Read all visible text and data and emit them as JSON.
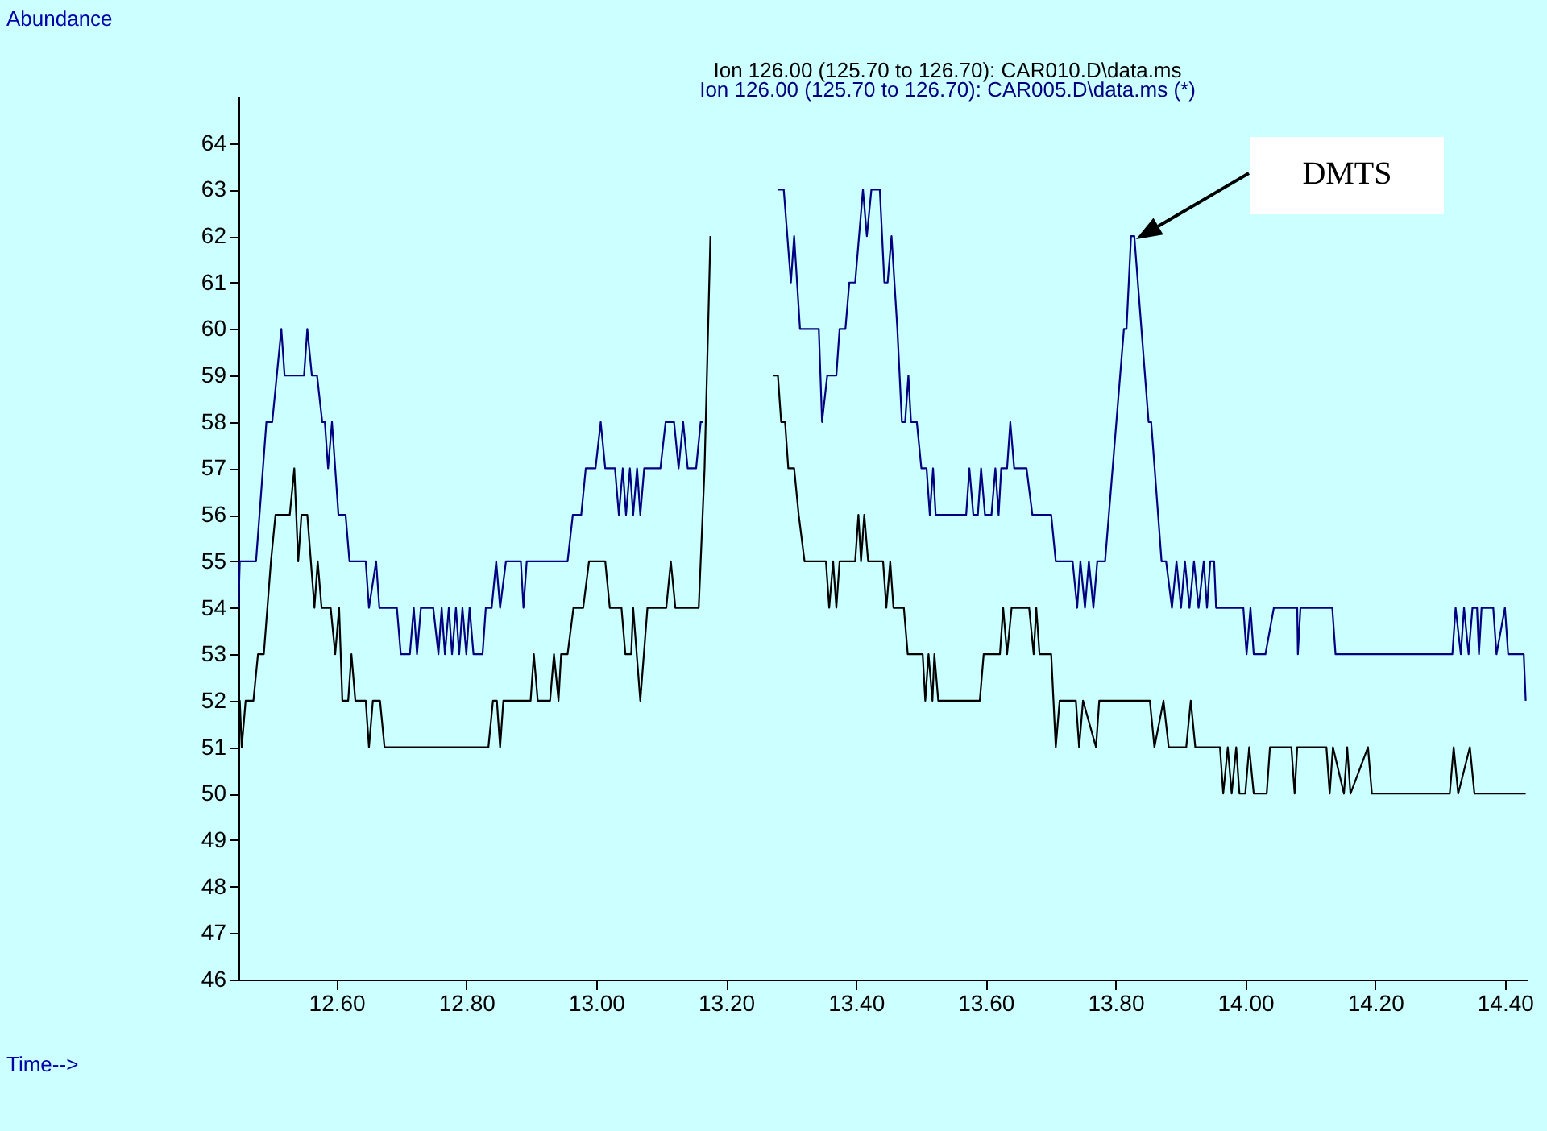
{
  "chart_data": {
    "type": "line",
    "xlim": [
      12.449,
      14.435
    ],
    "ylim": [
      46,
      65
    ],
    "xticks": [
      {
        "value": 12.6,
        "label": "12.60"
      },
      {
        "value": 12.8,
        "label": "12.80"
      },
      {
        "value": 13.0,
        "label": "13.00"
      },
      {
        "value": 13.2,
        "label": "13.20"
      },
      {
        "value": 13.4,
        "label": "13.40"
      },
      {
        "value": 13.6,
        "label": "13.60"
      },
      {
        "value": 13.8,
        "label": "13.80"
      },
      {
        "value": 14.0,
        "label": "14.00"
      },
      {
        "value": 14.2,
        "label": "14.20"
      },
      {
        "value": 14.4,
        "label": "14.40"
      }
    ],
    "yticks": [
      46,
      47,
      48,
      49,
      50,
      51,
      52,
      53,
      54,
      55,
      56,
      57,
      58,
      59,
      60,
      61,
      62,
      63,
      64
    ],
    "grid": false,
    "annotations": [
      "Abundance",
      "DMTS",
      "Time-->"
    ],
    "series": [
      {
        "name": "Ion 126.00 (125.70 to 126.70): CAR010.D\\data.ms",
        "color": "#000000",
        "x": [
          12.449,
          12.451,
          12.454,
          12.46,
          12.472,
          12.479,
          12.488,
          12.499,
          12.506,
          12.528,
          12.535,
          12.541,
          12.546,
          12.555,
          12.566,
          12.571,
          12.577,
          12.591,
          12.598,
          12.604,
          12.609,
          12.618,
          12.623,
          12.629,
          12.645,
          12.65,
          12.656,
          12.667,
          12.674,
          12.834,
          12.841,
          12.847,
          12.852,
          12.857,
          12.899,
          12.904,
          12.91,
          12.929,
          12.935,
          12.942,
          12.946,
          12.956,
          12.965,
          12.98,
          12.989,
          13.014,
          13.021,
          13.039,
          13.045,
          13.054,
          13.057,
          13.068,
          13.079,
          13.108,
          13.115,
          13.122,
          13.158,
          13.167,
          13.176,
          13.19,
          13.258,
          13.273,
          13.28,
          13.285,
          13.291,
          13.296,
          13.305,
          13.312,
          13.321,
          13.354,
          13.359,
          13.365,
          13.37,
          13.375,
          13.399,
          13.404,
          13.408,
          13.413,
          13.419,
          13.442,
          13.447,
          13.453,
          13.458,
          13.474,
          13.48,
          13.503,
          13.507,
          13.512,
          13.518,
          13.521,
          13.527,
          13.591,
          13.597,
          13.622,
          13.627,
          13.633,
          13.64,
          13.667,
          13.674,
          13.678,
          13.683,
          13.701,
          13.708,
          13.714,
          13.739,
          13.744,
          13.75,
          13.77,
          13.775,
          13.853,
          13.86,
          13.874,
          13.882,
          13.909,
          13.916,
          13.923,
          13.961,
          13.966,
          13.973,
          13.979,
          13.986,
          13.991,
          14.0,
          14.006,
          14.013,
          14.033,
          14.038,
          14.071,
          14.076,
          14.08,
          14.125,
          14.13,
          14.135,
          14.152,
          14.157,
          14.162,
          14.189,
          14.195,
          14.315,
          14.321,
          14.328,
          14.346,
          14.353,
          14.432
        ],
        "values": [
          51,
          52,
          51,
          52,
          52,
          53,
          53,
          55,
          56,
          56,
          57,
          55,
          56,
          56,
          54,
          55,
          54,
          54,
          53,
          54,
          52,
          52,
          53,
          52,
          52,
          51,
          52,
          52,
          51,
          51,
          52,
          52,
          51,
          52,
          52,
          53,
          52,
          52,
          53,
          52,
          53,
          53,
          54,
          54,
          55,
          55,
          54,
          54,
          53,
          53,
          54,
          52,
          54,
          54,
          55,
          54,
          54,
          57,
          62,
          null,
          null,
          59,
          59,
          58,
          58,
          57,
          57,
          56,
          55,
          55,
          54,
          55,
          54,
          55,
          55,
          56,
          55,
          56,
          55,
          55,
          54,
          55,
          54,
          54,
          53,
          53,
          52,
          53,
          52,
          53,
          52,
          52,
          53,
          53,
          54,
          53,
          54,
          54,
          53,
          54,
          53,
          53,
          51,
          52,
          52,
          51,
          52,
          51,
          52,
          52,
          51,
          52,
          51,
          51,
          52,
          51,
          51,
          50,
          51,
          50,
          51,
          50,
          50,
          51,
          50,
          50,
          51,
          51,
          50,
          51,
          51,
          50,
          51,
          50,
          51,
          50,
          51,
          50,
          50,
          51,
          50,
          51,
          50,
          50
        ]
      },
      {
        "name": "Ion 126.00 (125.70 to 126.70): CAR005.D\\data.ms (*)",
        "color": "#000080",
        "x": [
          12.449,
          12.451,
          12.476,
          12.492,
          12.501,
          12.515,
          12.52,
          12.55,
          12.555,
          12.562,
          12.57,
          12.578,
          12.582,
          12.587,
          12.593,
          12.603,
          12.614,
          12.62,
          12.645,
          12.65,
          12.661,
          12.666,
          12.693,
          12.699,
          12.713,
          12.719,
          12.724,
          12.73,
          12.749,
          12.757,
          12.762,
          12.767,
          12.773,
          12.778,
          12.784,
          12.789,
          12.794,
          12.8,
          12.805,
          12.811,
          12.825,
          12.83,
          12.839,
          12.846,
          12.852,
          12.861,
          12.884,
          12.888,
          12.893,
          12.956,
          12.964,
          12.977,
          12.984,
          12.999,
          13.007,
          13.014,
          13.029,
          13.035,
          13.041,
          13.046,
          13.052,
          13.057,
          13.063,
          13.068,
          13.074,
          13.099,
          13.107,
          13.12,
          13.127,
          13.134,
          13.141,
          13.154,
          13.161,
          13.165,
          13.177,
          13.273,
          13.28,
          13.289,
          13.3,
          13.305,
          13.314,
          13.343,
          13.348,
          13.356,
          13.37,
          13.375,
          13.384,
          13.39,
          13.399,
          13.411,
          13.417,
          13.424,
          13.437,
          13.444,
          13.449,
          13.455,
          13.464,
          13.471,
          13.476,
          13.481,
          13.485,
          13.494,
          13.501,
          13.509,
          13.514,
          13.519,
          13.523,
          13.57,
          13.575,
          13.581,
          13.588,
          13.593,
          13.599,
          13.609,
          13.615,
          13.62,
          13.624,
          13.633,
          13.638,
          13.644,
          13.663,
          13.672,
          13.701,
          13.708,
          13.734,
          13.741,
          13.746,
          13.753,
          13.759,
          13.766,
          13.772,
          13.784,
          13.813,
          13.817,
          13.824,
          13.829,
          13.851,
          13.855,
          13.871,
          13.878,
          13.887,
          13.894,
          13.901,
          13.907,
          13.914,
          13.921,
          13.928,
          13.936,
          13.941,
          13.946,
          13.952,
          13.955,
          13.997,
          14.002,
          14.008,
          14.013,
          14.031,
          14.044,
          14.08,
          14.081,
          14.085,
          14.134,
          14.139,
          14.319,
          14.324,
          14.332,
          14.337,
          14.344,
          14.35,
          14.357,
          14.36,
          14.364,
          14.382,
          14.387,
          14.4,
          14.405,
          14.429,
          14.432
        ],
        "values": [
          54,
          55,
          55,
          58,
          58,
          60,
          59,
          59,
          60,
          59,
          59,
          58,
          58,
          57,
          58,
          56,
          56,
          55,
          55,
          54,
          55,
          54,
          54,
          53,
          53,
          54,
          53,
          54,
          54,
          53,
          54,
          53,
          54,
          53,
          54,
          53,
          54,
          53,
          54,
          53,
          53,
          54,
          54,
          55,
          54,
          55,
          55,
          54,
          55,
          55,
          56,
          56,
          57,
          57,
          58,
          57,
          57,
          56,
          57,
          56,
          57,
          56,
          57,
          56,
          57,
          57,
          58,
          58,
          57,
          58,
          57,
          57,
          58,
          58,
          null,
          null,
          63,
          63,
          61,
          62,
          60,
          60,
          58,
          59,
          59,
          60,
          60,
          61,
          61,
          63,
          62,
          63,
          63,
          61,
          61,
          62,
          60,
          58,
          58,
          59,
          58,
          58,
          57,
          57,
          56,
          57,
          56,
          56,
          57,
          56,
          56,
          57,
          56,
          56,
          57,
          56,
          57,
          57,
          58,
          57,
          57,
          56,
          56,
          55,
          55,
          54,
          55,
          54,
          55,
          54,
          55,
          55,
          60,
          60,
          62,
          62,
          58,
          58,
          55,
          55,
          54,
          55,
          54,
          55,
          54,
          55,
          54,
          55,
          54,
          55,
          55,
          54,
          54,
          53,
          54,
          53,
          53,
          54,
          54,
          53,
          54,
          54,
          53,
          53,
          54,
          53,
          54,
          53,
          54,
          54,
          53,
          54,
          54,
          53,
          54,
          53,
          53,
          52
        ]
      }
    ]
  }
}
